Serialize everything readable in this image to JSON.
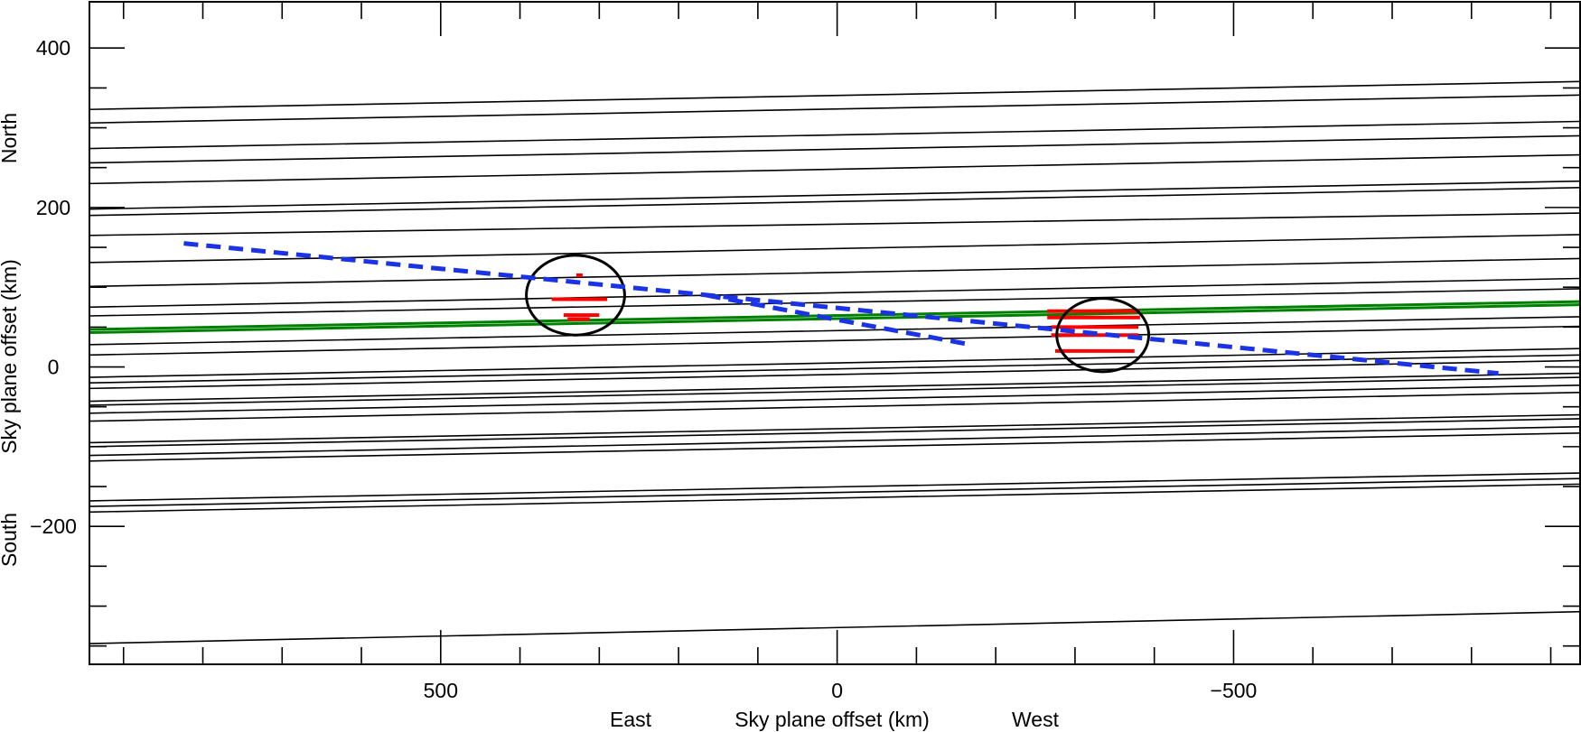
{
  "chart_data": {
    "type": "line",
    "title": "",
    "xlabel": "Sky plane offset (km)",
    "ylabel": "Sky plane offset (km)",
    "x_direction_labels": {
      "left": "East",
      "right": "West"
    },
    "y_direction_labels": {
      "top": "North",
      "bottom": "South"
    },
    "xlim": [
      943,
      -937
    ],
    "ylim": [
      -373,
      458
    ],
    "x_major_ticks": [
      500,
      0,
      -500
    ],
    "x_tick_labels": [
      "500",
      "0",
      "−500"
    ],
    "x_minor_ticks": [
      900,
      800,
      700,
      600,
      400,
      300,
      200,
      100,
      -100,
      -200,
      -300,
      -400,
      -600,
      -700,
      -800,
      -900
    ],
    "y_major_ticks": [
      400,
      200,
      0,
      -200
    ],
    "y_tick_labels": [
      "400",
      "200",
      "0",
      "−200"
    ],
    "y_minor_ticks": [
      350,
      300,
      250,
      150,
      100,
      50,
      -50,
      -100,
      -150,
      -250,
      -300,
      -350
    ],
    "grid": false,
    "chord_x_range": [
      943,
      -937
    ],
    "series": [
      {
        "color": "#000000",
        "chords": [
          [
            323,
            358
          ],
          [
            306,
            341
          ],
          [
            274,
            308
          ],
          [
            256,
            290
          ],
          [
            230,
            266
          ],
          [
            198,
            233
          ],
          [
            190,
            225
          ],
          [
            165,
            193
          ],
          [
            131,
            166
          ],
          [
            101,
            136
          ],
          [
            75,
            111
          ],
          [
            64,
            98
          ],
          [
            28,
            63
          ],
          [
            15,
            51
          ],
          [
            -13,
            23
          ],
          [
            -20,
            15
          ],
          [
            -27,
            8
          ],
          [
            -43,
            -8
          ],
          [
            -48,
            -13
          ],
          [
            -58,
            -23
          ],
          [
            -68,
            -32
          ],
          [
            -95,
            -60
          ],
          [
            -100,
            -65
          ],
          [
            -111,
            -75
          ],
          [
            -118,
            -83
          ],
          [
            -168,
            -133
          ],
          [
            -175,
            -140
          ],
          [
            -182,
            -147
          ],
          [
            -347,
            -307
          ]
        ]
      },
      {
        "color": "#008000",
        "chords": [
          [
            47,
            82
          ],
          [
            43,
            78
          ]
        ]
      },
      {
        "color": "#ff0000",
        "segments": [
          {
            "x0": 329,
            "x1": 321,
            "y0": 115,
            "y1": 115
          },
          {
            "x0": 360,
            "x1": 290,
            "y0": 85,
            "y1": 85
          },
          {
            "x0": 345,
            "x1": 300,
            "y0": 65,
            "y1": 65
          },
          {
            "x0": 340,
            "x1": 312,
            "y0": 60,
            "y1": 60
          },
          {
            "x0": -265,
            "x1": -382,
            "y0": 70,
            "y1": 70
          },
          {
            "x0": -265,
            "x1": -382,
            "y0": 62,
            "y1": 62
          },
          {
            "x0": -270,
            "x1": -380,
            "y0": 50,
            "y1": 50
          },
          {
            "x0": -270,
            "x1": -380,
            "y0": 40,
            "y1": 40
          },
          {
            "x0": -275,
            "x1": -375,
            "y0": 20,
            "y1": 20
          }
        ]
      },
      {
        "color": "#1a33e6",
        "dashed": true,
        "segments": [
          {
            "x0": 824,
            "y0": 155,
            "x1": -834,
            "y1": -8
          },
          {
            "x0": 165,
            "y0": 90,
            "x1": -168,
            "y1": 28
          }
        ]
      }
    ],
    "ellipses": [
      {
        "cx": 330,
        "cy": 90,
        "rx": 62,
        "ry": 50,
        "color": "#000000"
      },
      {
        "cx": -335,
        "cy": 40,
        "rx": 58,
        "ry": 46,
        "color": "#000000"
      }
    ]
  }
}
